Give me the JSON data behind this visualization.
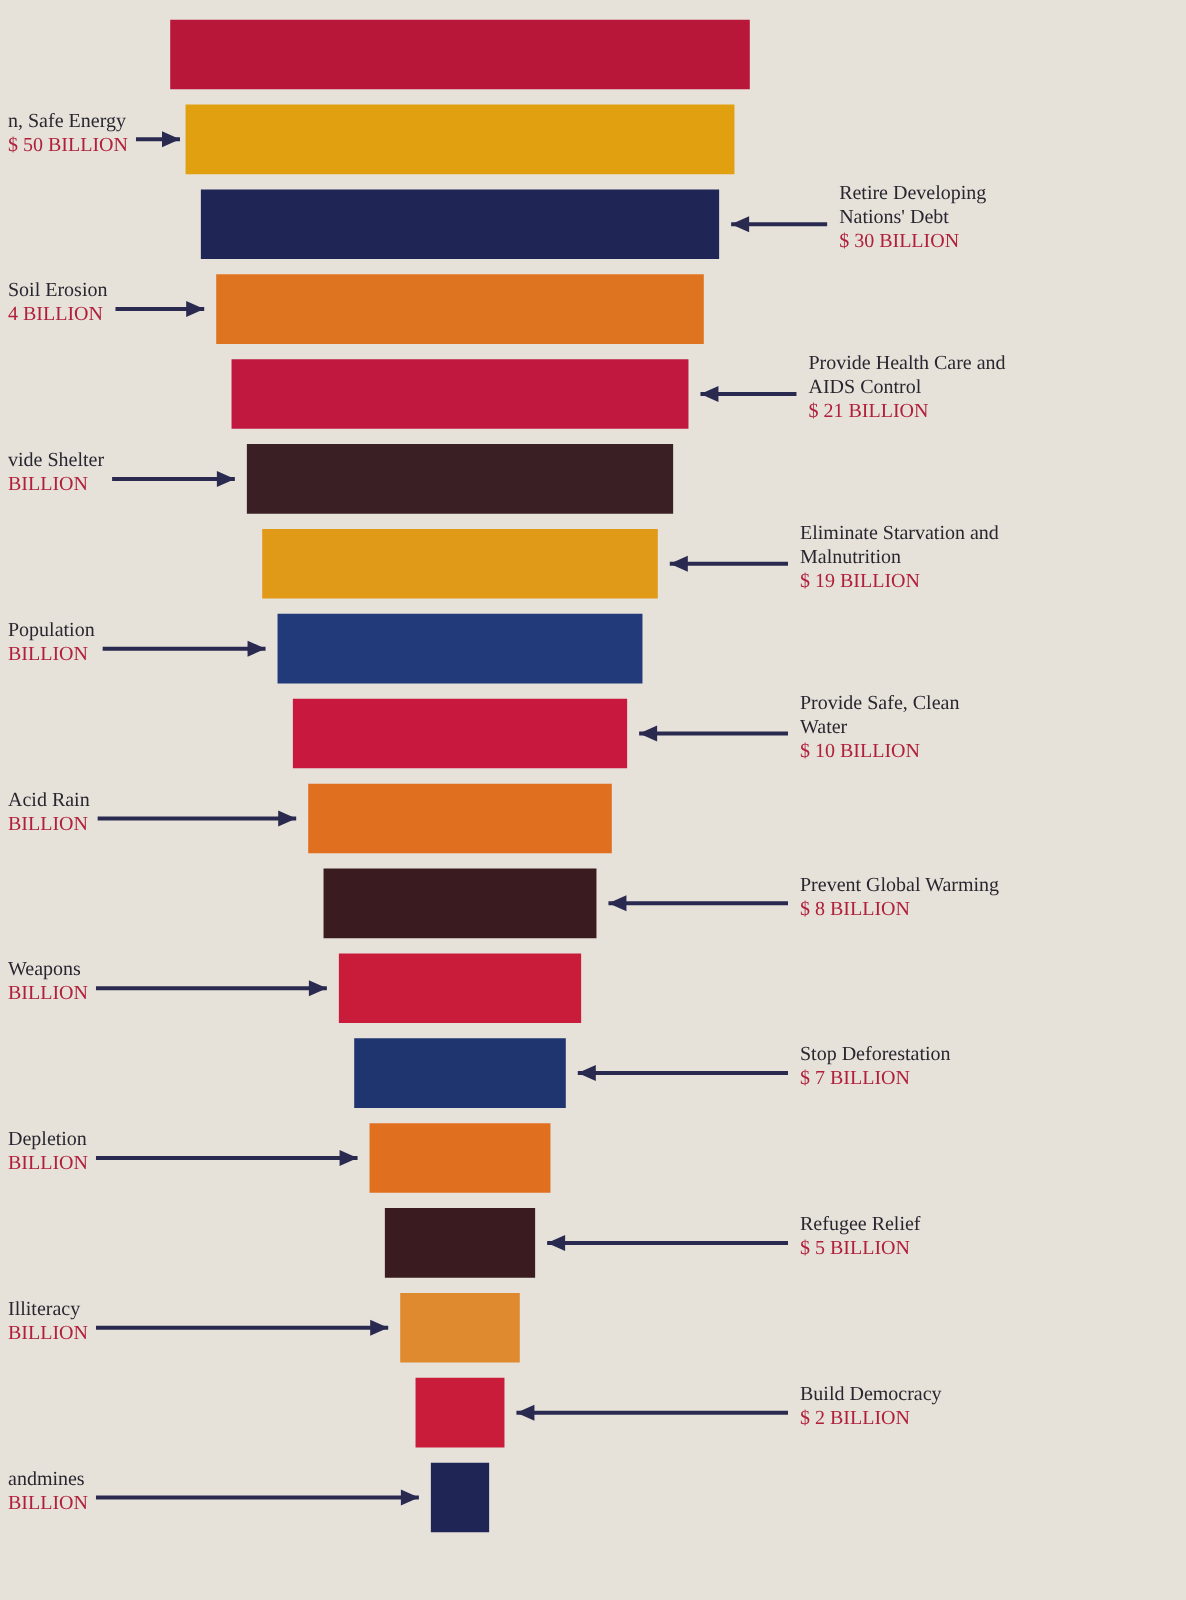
{
  "chart_data": {
    "type": "other",
    "categories": [
      null,
      "n, Safe Energy",
      "Retire Developing Nations' Debt",
      "Soil Erosion",
      "Provide Health Care and AIDS Control",
      "vide Shelter",
      "Eliminate Starvation and Malnutrition",
      "Population",
      "Provide Safe, Clean Water",
      "Acid Rain",
      "Prevent Global Warming",
      "Weapons",
      "Stop Deforestation",
      "Depletion",
      "Refugee Relief",
      "Illiteracy",
      "Build Democracy",
      "andmines"
    ],
    "values": [
      null,
      50,
      30,
      null,
      21,
      null,
      19,
      null,
      10,
      null,
      8,
      null,
      7,
      null,
      5,
      null,
      2,
      null
    ],
    "value_labels": [
      null,
      "$ 50 BILLION",
      "$ 30 BILLION",
      "4 BILLION",
      "$ 21 BILLION",
      "BILLION",
      "$ 19 BILLION",
      "BILLION",
      "$ 10 BILLION",
      "BILLION",
      "$ 8 BILLION",
      "BILLION",
      "$ 7 BILLION",
      "BILLION",
      "$ 5 BILLION",
      "BILLION",
      "$ 2 BILLION",
      "BILLION"
    ],
    "colors": [
      "#b8173a",
      "#e0a010",
      "#1f2555",
      "#de7420",
      "#c0183f",
      "#3a1f24",
      "#e09a18",
      "#233a7a",
      "#c8183e",
      "#e07020",
      "#3a1c20",
      "#c81c3a",
      "#1f3570",
      "#e07020",
      "#3a1c20",
      "#e08a30",
      "#c81c3a",
      "#1f2555"
    ],
    "legend": false
  }
}
